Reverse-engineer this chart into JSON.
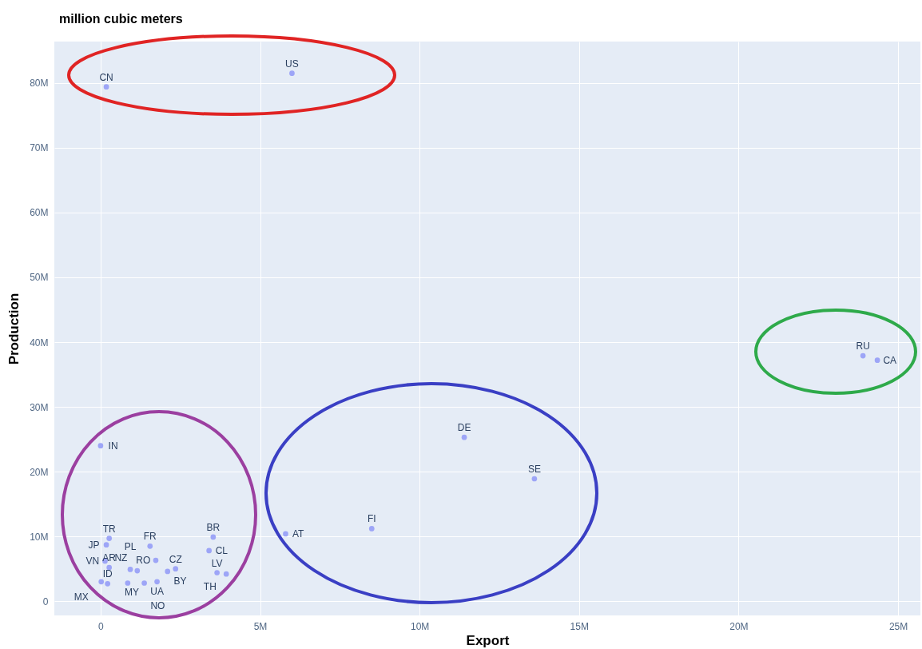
{
  "chart_data": {
    "type": "scatter",
    "title": "million cubic meters",
    "xlabel": "Export",
    "ylabel": "Production",
    "x": [
      180000,
      6000000,
      23900000,
      24350000,
      11400000,
      13600000,
      8500000,
      5800000,
      0,
      270000,
      180000,
      3530000,
      3400000,
      3650000,
      3940000,
      1550000,
      1730000,
      2350000,
      2100000,
      1770000,
      1370000,
      1150000,
      930000,
      850000,
      20000,
      220000,
      140000,
      270000
    ],
    "series": [
      {
        "color": "#9da5f7",
        "values": [
          79400000,
          81500000,
          37900000,
          37200000,
          25300000,
          18900000,
          11200000,
          10400000,
          24000000,
          9700000,
          8700000,
          9900000,
          7800000,
          4400000,
          4200000,
          8500000,
          6300000,
          5000000,
          4600000,
          3000000,
          2800000,
          4700000,
          4900000,
          2800000,
          3000000,
          2700000,
          6200000,
          5200000
        ]
      }
    ],
    "annotations": [
      {
        "text": "CN",
        "x": 180000,
        "y": 79400000
      },
      {
        "text": "US",
        "x": 6000000,
        "y": 81500000
      },
      {
        "text": "RU",
        "x": 23900000,
        "y": 37900000
      },
      {
        "text": "CA",
        "x": 24350000,
        "y": 37200000
      },
      {
        "text": "DE",
        "x": 11400000,
        "y": 25300000
      },
      {
        "text": "SE",
        "x": 13600000,
        "y": 18900000
      },
      {
        "text": "FI",
        "x": 8500000,
        "y": 11200000
      },
      {
        "text": "AT",
        "x": 5800000,
        "y": 10400000
      },
      {
        "text": "IN",
        "x": 0,
        "y": 24000000
      },
      {
        "text": "TR",
        "x": 270000,
        "y": 9700000
      },
      {
        "text": "JP",
        "x": 180000,
        "y": 8700000
      },
      {
        "text": "BR",
        "x": 3530000,
        "y": 9900000
      },
      {
        "text": "CL",
        "x": 3400000,
        "y": 7800000
      },
      {
        "text": "LV",
        "x": 3650000,
        "y": 4400000
      },
      {
        "text": "TH",
        "x": 3940000,
        "y": 4200000
      },
      {
        "text": "FR",
        "x": 1550000,
        "y": 8500000
      },
      {
        "text": "RO",
        "x": 1730000,
        "y": 6300000
      },
      {
        "text": "CZ",
        "x": 2350000,
        "y": 5000000
      },
      {
        "text": "BY",
        "x": 2100000,
        "y": 4600000
      },
      {
        "text": "UA",
        "x": 1770000,
        "y": 3000000
      },
      {
        "text": "MY",
        "x": 1370000,
        "y": 2800000
      },
      {
        "text": "NZ",
        "x": 1150000,
        "y": 4700000
      },
      {
        "text": "PL",
        "x": 930000,
        "y": 4900000
      },
      {
        "text": "NO",
        "x": 850000,
        "y": 2800000
      },
      {
        "text": "MX",
        "x": 20000,
        "y": 3000000
      },
      {
        "text": "ID",
        "x": 220000,
        "y": 2700000
      },
      {
        "text": "VN",
        "x": 140000,
        "y": 6200000
      },
      {
        "text": "AR",
        "x": 270000,
        "y": 5200000
      }
    ],
    "xlim": [
      -1450000,
      25700000
    ],
    "ylim": [
      -2200000,
      86400000
    ],
    "xticks": [
      0,
      {
        "value": 5000000,
        "label": "5M"
      },
      {
        "value": 10000000,
        "label": "10M"
      },
      {
        "value": 15000000,
        "label": "15M"
      },
      {
        "value": 20000000,
        "label": "20M"
      },
      {
        "value": 25000000,
        "label": "25M"
      }
    ],
    "yticks": [
      0,
      {
        "value": 10000000,
        "label": "10M"
      },
      {
        "value": 20000000,
        "label": "20M"
      },
      {
        "value": 30000000,
        "label": "30M"
      },
      {
        "value": 40000000,
        "label": "40M"
      },
      {
        "value": 50000000,
        "label": "50M"
      },
      {
        "value": 60000000,
        "label": "60M"
      },
      {
        "value": 70000000,
        "label": "70M"
      },
      {
        "value": 80000000,
        "label": "80M"
      }
    ],
    "grid": true,
    "marker": "circle"
  }
}
